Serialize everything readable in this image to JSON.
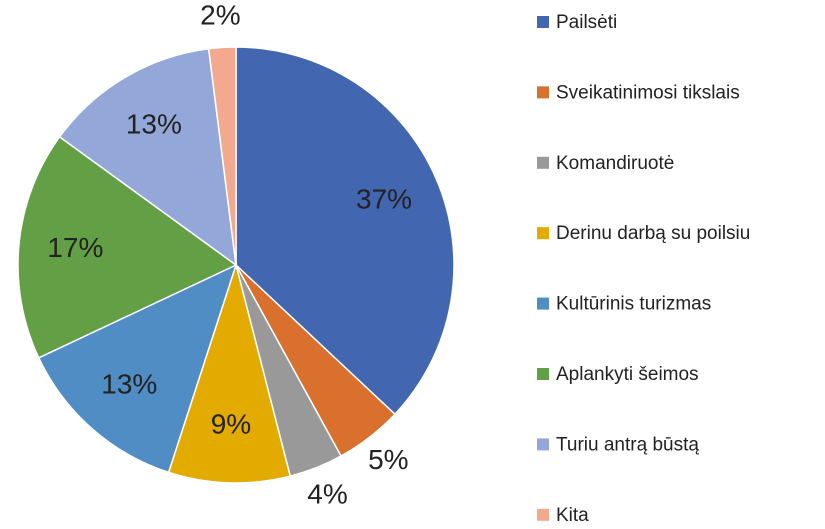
{
  "chart_data": {
    "type": "pie",
    "categories": [
      "Pailsėti",
      "Sveikatinimosi tikslais",
      "Komandiruotė",
      "Derinu darbą su poilsiu",
      "Kultūrinis turizmas",
      "Aplankyti šeimos",
      "Turiu antrą būstą",
      "Kita"
    ],
    "values": [
      37,
      5,
      4,
      9,
      13,
      17,
      13,
      2
    ],
    "value_labels": [
      "37%",
      "5%",
      "4%",
      "9%",
      "13%",
      "17%",
      "13%",
      "2%"
    ],
    "colors": [
      "#4266b0",
      "#d9702e",
      "#999999",
      "#e3aa00",
      "#4f8dc4",
      "#63a045",
      "#93a8d8",
      "#f2a98d"
    ],
    "legend": "right"
  }
}
